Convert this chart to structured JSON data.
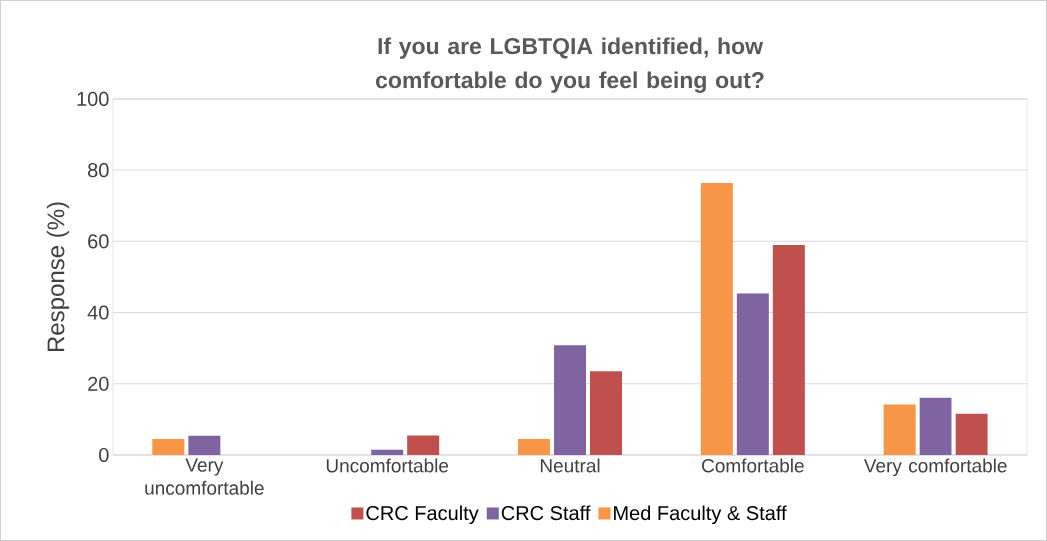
{
  "chart_data": {
    "type": "bar",
    "title": "If you are LGBTQIA identified, how comfortable do you feel being out?",
    "ylabel": "Response (%)",
    "categories": [
      "Very uncomfortable",
      "Uncomfortable",
      "Neutral",
      "Comfortable",
      "Very comfortable"
    ],
    "series": [
      {
        "name": "Med Faculty & Staff",
        "color": "#f79646",
        "values": [
          4.5,
          0,
          4.5,
          76.4,
          14.2
        ]
      },
      {
        "name": "CRC Staff",
        "color": "#8064a2",
        "values": [
          5.4,
          1.5,
          30.8,
          45.4,
          16.1
        ]
      },
      {
        "name": "CRC Faculty",
        "color": "#c0504d",
        "values": [
          0,
          5.5,
          23.5,
          59,
          11.6
        ]
      }
    ],
    "ylim": [
      0,
      100
    ],
    "yticks": [
      0,
      20,
      40,
      60,
      80,
      100
    ],
    "grid": "y",
    "legend": "bottom"
  }
}
